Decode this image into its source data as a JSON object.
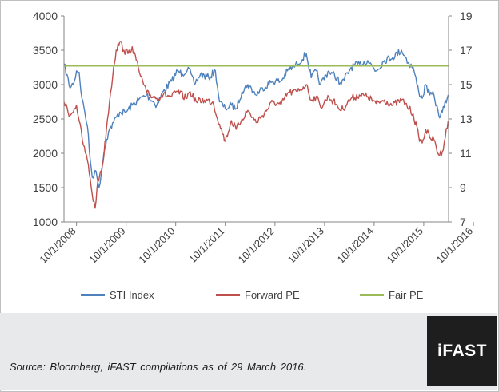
{
  "chart_data": {
    "type": "line",
    "title": "",
    "xlabel": "",
    "x_ticks": [
      "10/1/2008",
      "10/1/2009",
      "10/1/2010",
      "10/1/2011",
      "10/1/2012",
      "10/1/2013",
      "10/1/2014",
      "10/1/2015",
      "10/1/2016"
    ],
    "y_left": {
      "ticks": [
        1000,
        1500,
        2000,
        2500,
        3000,
        3500,
        4000
      ],
      "lim": [
        1000,
        4000
      ]
    },
    "y_right": {
      "ticks": [
        7,
        9,
        11,
        13,
        15,
        17,
        19
      ],
      "lim": [
        7,
        19
      ]
    },
    "grid": false,
    "legend_position": "bottom",
    "series": [
      {
        "name": "STI Index",
        "axis": "left",
        "color": "#4f81bd",
        "points": [
          [
            "2008-07-01",
            3300
          ],
          [
            "2008-08-15",
            2950
          ],
          [
            "2008-09-15",
            3050
          ],
          [
            "2008-10-01",
            3200
          ],
          [
            "2008-10-20",
            3180
          ],
          [
            "2008-11-10",
            2800
          ],
          [
            "2008-12-01",
            2600
          ],
          [
            "2008-12-20",
            2400
          ],
          [
            "2009-01-10",
            1900
          ],
          [
            "2009-01-25",
            1650
          ],
          [
            "2009-02-15",
            1750
          ],
          [
            "2009-03-01",
            1650
          ],
          [
            "2009-03-15",
            1500
          ],
          [
            "2009-04-01",
            1700
          ],
          [
            "2009-04-20",
            2000
          ],
          [
            "2009-05-10",
            2200
          ],
          [
            "2009-06-01",
            2350
          ],
          [
            "2009-07-01",
            2450
          ],
          [
            "2009-08-15",
            2600
          ],
          [
            "2009-10-01",
            2600
          ],
          [
            "2009-11-15",
            2700
          ],
          [
            "2010-01-01",
            2780
          ],
          [
            "2010-03-01",
            2850
          ],
          [
            "2010-05-15",
            2700
          ],
          [
            "2010-07-01",
            2900
          ],
          [
            "2010-09-01",
            3050
          ],
          [
            "2010-10-15",
            3200
          ],
          [
            "2010-11-20",
            3150
          ],
          [
            "2011-01-01",
            3250
          ],
          [
            "2011-02-15",
            3000
          ],
          [
            "2011-04-01",
            3150
          ],
          [
            "2011-06-01",
            3100
          ],
          [
            "2011-07-20",
            3200
          ],
          [
            "2011-08-20",
            2750
          ],
          [
            "2011-10-01",
            2650
          ],
          [
            "2011-11-15",
            2700
          ],
          [
            "2011-12-20",
            2650
          ],
          [
            "2012-02-01",
            2900
          ],
          [
            "2012-03-15",
            3000
          ],
          [
            "2012-05-15",
            2850
          ],
          [
            "2012-07-01",
            2950
          ],
          [
            "2012-09-15",
            3050
          ],
          [
            "2012-11-15",
            3050
          ],
          [
            "2013-01-01",
            3200
          ],
          [
            "2013-03-15",
            3300
          ],
          [
            "2013-05-20",
            3450
          ],
          [
            "2013-06-25",
            3100
          ],
          [
            "2013-08-01",
            3200
          ],
          [
            "2013-09-01",
            3000
          ],
          [
            "2013-11-01",
            3200
          ],
          [
            "2014-01-01",
            3100
          ],
          [
            "2014-02-01",
            3000
          ],
          [
            "2014-04-15",
            3250
          ],
          [
            "2014-06-15",
            3300
          ],
          [
            "2014-08-15",
            3350
          ],
          [
            "2014-10-15",
            3200
          ],
          [
            "2014-12-15",
            3350
          ],
          [
            "2015-02-15",
            3400
          ],
          [
            "2015-04-20",
            3500
          ],
          [
            "2015-05-20",
            3400
          ],
          [
            "2015-06-15",
            3300
          ],
          [
            "2015-07-15",
            3250
          ],
          [
            "2015-08-25",
            2900
          ],
          [
            "2015-09-20",
            2800
          ],
          [
            "2015-10-15",
            3000
          ],
          [
            "2015-11-15",
            2850
          ],
          [
            "2015-12-15",
            2850
          ],
          [
            "2016-01-20",
            2550
          ],
          [
            "2016-02-15",
            2600
          ],
          [
            "2016-03-29",
            2850
          ]
        ]
      },
      {
        "name": "Forward PE",
        "axis": "right",
        "color": "#c0504d",
        "points": [
          [
            "2008-07-01",
            14.0
          ],
          [
            "2008-08-15",
            13.2
          ],
          [
            "2008-09-15",
            13.6
          ],
          [
            "2008-10-01",
            13.8
          ],
          [
            "2008-10-20",
            12.9
          ],
          [
            "2008-11-20",
            11.5
          ],
          [
            "2008-12-20",
            10.6
          ],
          [
            "2009-01-10",
            9.5
          ],
          [
            "2009-01-25",
            8.6
          ],
          [
            "2009-02-15",
            7.8
          ],
          [
            "2009-03-01",
            9.0
          ],
          [
            "2009-03-20",
            9.7
          ],
          [
            "2009-04-15",
            10.5
          ],
          [
            "2009-05-10",
            12.5
          ],
          [
            "2009-06-01",
            14.0
          ],
          [
            "2009-07-01",
            16.0
          ],
          [
            "2009-07-20",
            17.0
          ],
          [
            "2009-08-15",
            17.5
          ],
          [
            "2009-09-15",
            17.0
          ],
          [
            "2009-10-15",
            16.8
          ],
          [
            "2009-11-15",
            17.2
          ],
          [
            "2009-12-15",
            16.4
          ],
          [
            "2010-01-15",
            15.5
          ],
          [
            "2010-03-01",
            14.5
          ],
          [
            "2010-05-15",
            14.2
          ],
          [
            "2010-07-01",
            14.4
          ],
          [
            "2010-09-01",
            14.3
          ],
          [
            "2010-10-15",
            14.6
          ],
          [
            "2010-12-15",
            14.2
          ],
          [
            "2011-01-15",
            14.6
          ],
          [
            "2011-03-01",
            14.0
          ],
          [
            "2011-05-01",
            14.1
          ],
          [
            "2011-07-01",
            14.0
          ],
          [
            "2011-08-20",
            12.7
          ],
          [
            "2011-10-01",
            11.7
          ],
          [
            "2011-11-15",
            12.9
          ],
          [
            "2011-12-20",
            12.4
          ],
          [
            "2012-02-01",
            13.0
          ],
          [
            "2012-03-15",
            13.5
          ],
          [
            "2012-05-15",
            12.8
          ],
          [
            "2012-07-01",
            13.2
          ],
          [
            "2012-09-15",
            14.0
          ],
          [
            "2012-11-15",
            13.8
          ],
          [
            "2013-01-01",
            14.5
          ],
          [
            "2013-03-15",
            14.6
          ],
          [
            "2013-05-20",
            15.0
          ],
          [
            "2013-06-25",
            14.1
          ],
          [
            "2013-08-01",
            14.3
          ],
          [
            "2013-09-01",
            13.7
          ],
          [
            "2013-11-01",
            14.3
          ],
          [
            "2014-01-01",
            13.8
          ],
          [
            "2014-02-01",
            13.5
          ],
          [
            "2014-04-15",
            14.2
          ],
          [
            "2014-06-15",
            14.4
          ],
          [
            "2014-08-15",
            14.3
          ],
          [
            "2014-10-15",
            13.9
          ],
          [
            "2014-12-15",
            14.1
          ],
          [
            "2015-02-15",
            13.8
          ],
          [
            "2015-04-20",
            14.1
          ],
          [
            "2015-05-20",
            13.9
          ],
          [
            "2015-06-15",
            13.6
          ],
          [
            "2015-07-15",
            13.3
          ],
          [
            "2015-08-25",
            12.0
          ],
          [
            "2015-09-20",
            11.6
          ],
          [
            "2015-10-15",
            12.4
          ],
          [
            "2015-11-15",
            11.9
          ],
          [
            "2015-12-15",
            11.8
          ],
          [
            "2016-01-20",
            10.9
          ],
          [
            "2016-02-15",
            11.1
          ],
          [
            "2016-03-29",
            12.9
          ]
        ]
      },
      {
        "name": "Fair PE",
        "axis": "right",
        "color": "#9bbb59",
        "points": [
          [
            "2008-07-01",
            16.1
          ],
          [
            "2016-03-29",
            16.1
          ]
        ]
      }
    ]
  },
  "footer": {
    "source": "Source: Bloomberg, iFAST compilations as of 29 March 2016.",
    "logo_text": "iFAST"
  }
}
